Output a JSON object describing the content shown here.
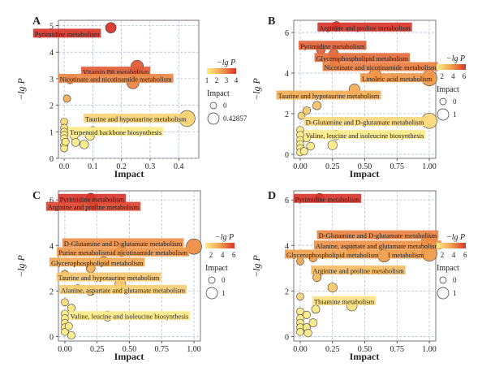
{
  "chart_data": [
    {
      "type": "scatter",
      "panel_label": "A",
      "title": "",
      "xlabel": "Impact",
      "ylabel": "−lg P",
      "xlim": [
        -0.02,
        0.47
      ],
      "ylim": [
        0,
        5.2
      ],
      "xticks": [
        "0.0",
        "0.1",
        "0.2",
        "0.3",
        "0.4"
      ],
      "xtick_values": [
        0,
        0.1,
        0.2,
        0.3,
        0.4
      ],
      "yticks": [
        "0",
        "1",
        "2",
        "3",
        "4",
        "5"
      ],
      "ytick_values": [
        0,
        1,
        2,
        3,
        4,
        5
      ],
      "color_range": [
        1,
        4
      ],
      "legend": {
        "color_title": "−lg P",
        "color_ticks": [
          "1",
          "2",
          "3",
          "4"
        ],
        "color_tick_values": [
          1,
          2,
          3,
          4
        ],
        "size_title": "Impact",
        "size_labels": [
          "0",
          "0.42857"
        ]
      },
      "points": [
        {
          "x": 0.163,
          "y": 4.92,
          "size": 0.163
        },
        {
          "x": 0.255,
          "y": 3.46,
          "size": 0.255
        },
        {
          "x": 0.24,
          "y": 2.85,
          "size": 0.24
        },
        {
          "x": 0.02,
          "y": 2.95,
          "size": 0.02
        },
        {
          "x": 0.01,
          "y": 2.25,
          "size": 0.01
        },
        {
          "x": 0.429,
          "y": 1.5,
          "size": 0.429
        },
        {
          "x": 0.1,
          "y": 1.02,
          "size": 0.1
        },
        {
          "x": 0.0,
          "y": 1.38,
          "size": 0.0
        },
        {
          "x": 0.0,
          "y": 1.15,
          "size": 0.0
        },
        {
          "x": 0.0,
          "y": 1.0,
          "size": 0.0
        },
        {
          "x": 0.0,
          "y": 0.88,
          "size": 0.0
        },
        {
          "x": 0.0,
          "y": 0.75,
          "size": 0.0
        },
        {
          "x": 0.005,
          "y": 0.62,
          "size": 0.005
        },
        {
          "x": 0.0,
          "y": 0.5,
          "size": 0.0
        },
        {
          "x": 0.0,
          "y": 0.38,
          "size": 0.0
        },
        {
          "x": 0.035,
          "y": 0.85,
          "size": 0.035
        },
        {
          "x": 0.07,
          "y": 0.52,
          "size": 0.07
        },
        {
          "x": 0.04,
          "y": 0.6,
          "size": 0.04
        },
        {
          "x": 0.09,
          "y": 0.85,
          "size": 0.09
        }
      ],
      "annotations": [
        {
          "text": "Pyrimidine metabolism",
          "x": 0.01,
          "y": 4.7,
          "y_value": 4.92
        },
        {
          "text": "Vitamin B6 metabolism",
          "x": 0.18,
          "y": 3.27,
          "y_value": 3.46
        },
        {
          "text": "Nicotinate and nicotinamide metabolism",
          "x": 0.18,
          "y": 3.0,
          "y_value": 2.85
        },
        {
          "text": "Taurine and hypotaurine metabolism",
          "x": 0.25,
          "y": 1.5,
          "y_value": 1.5
        },
        {
          "text": "Terpenoid backbone biosynthesis",
          "x": 0.18,
          "y": 1.0,
          "y_value": 1.02
        }
      ]
    },
    {
      "type": "scatter",
      "panel_label": "B",
      "title": "",
      "xlabel": "Impact",
      "ylabel": "−lg P",
      "xlim": [
        -0.05,
        1.05
      ],
      "ylim": [
        -0.2,
        6.6
      ],
      "xticks": [
        "0.00",
        "0.25",
        "0.50",
        "0.75",
        "1.00"
      ],
      "xtick_values": [
        0,
        0.25,
        0.5,
        0.75,
        1.0
      ],
      "yticks": [
        "0",
        "2",
        "4",
        "6"
      ],
      "ytick_values": [
        0,
        2,
        4,
        6
      ],
      "color_range": [
        1,
        6.3
      ],
      "legend": {
        "color_title": "−lg P",
        "color_ticks": [
          "2",
          "4",
          "6"
        ],
        "color_tick_values": [
          2,
          4,
          6
        ],
        "size_title": "Impact",
        "size_labels": [
          "0",
          "1"
        ]
      },
      "points": [
        {
          "x": 0.28,
          "y": 6.3,
          "size": 0.28
        },
        {
          "x": 0.16,
          "y": 5.15,
          "size": 0.16
        },
        {
          "x": 0.26,
          "y": 4.95,
          "size": 0.26
        },
        {
          "x": 0.27,
          "y": 4.5,
          "size": 0.27
        },
        {
          "x": 0.58,
          "y": 3.9,
          "size": 0.58
        },
        {
          "x": 1.0,
          "y": 3.75,
          "size": 1.0
        },
        {
          "x": 0.42,
          "y": 3.2,
          "size": 0.42
        },
        {
          "x": 0.13,
          "y": 2.4,
          "size": 0.13
        },
        {
          "x": 0.05,
          "y": 2.15,
          "size": 0.05
        },
        {
          "x": 0.01,
          "y": 1.9,
          "size": 0.01
        },
        {
          "x": 1.0,
          "y": 1.65,
          "size": 1.0
        },
        {
          "x": 0.28,
          "y": 0.95,
          "size": 0.28
        },
        {
          "x": 0.0,
          "y": 1.2,
          "size": 0.0
        },
        {
          "x": 0.0,
          "y": 0.95,
          "size": 0.0
        },
        {
          "x": 0.0,
          "y": 0.7,
          "size": 0.0
        },
        {
          "x": 0.0,
          "y": 0.5,
          "size": 0.0
        },
        {
          "x": 0.0,
          "y": 0.3,
          "size": 0.0
        },
        {
          "x": 0.0,
          "y": 0.1,
          "size": 0.0
        },
        {
          "x": 0.03,
          "y": 0.15,
          "size": 0.03
        },
        {
          "x": 0.08,
          "y": 0.4,
          "size": 0.08
        },
        {
          "x": 0.25,
          "y": 0.45,
          "size": 0.25
        },
        {
          "x": 0.05,
          "y": 0.8,
          "size": 0.05
        }
      ],
      "annotations": [
        {
          "text": "Arginine and proline metabolism",
          "x": 0.5,
          "y": 6.25,
          "y_value": 6.3
        },
        {
          "text": "Pyrimidine metabolism",
          "x": 0.25,
          "y": 5.35,
          "y_value": 5.15
        },
        {
          "text": "Glycerophospholipid metabolism",
          "x": 0.48,
          "y": 4.75,
          "y_value": 4.95
        },
        {
          "text": "Nicotinate and nicotinamide metabolism",
          "x": 0.62,
          "y": 4.3,
          "y_value": 4.5
        },
        {
          "text": "Linoleic acid metabolism",
          "x": 0.75,
          "y": 3.75,
          "y_value": 3.9
        },
        {
          "text": "Taurine and hypotaurine metabolism",
          "x": 0.22,
          "y": 2.9,
          "y_value": 3.2
        },
        {
          "text": "D-Glutamine and D-glutamate metabolism",
          "x": 0.5,
          "y": 1.6,
          "y_value": 1.65
        },
        {
          "text": "Valine, leucine and isoleucine biosynthesis",
          "x": 0.5,
          "y": 0.95,
          "y_value": 0.95
        }
      ]
    },
    {
      "type": "scatter",
      "panel_label": "C",
      "title": "",
      "xlabel": "Impact",
      "ylabel": "−lg P",
      "xlim": [
        -0.05,
        1.05
      ],
      "ylim": [
        -0.2,
        6.4
      ],
      "xticks": [
        "0.00",
        "0.25",
        "0.50",
        "0.75",
        "1.00"
      ],
      "xtick_values": [
        0,
        0.25,
        0.5,
        0.75,
        1.0
      ],
      "yticks": [
        "0",
        "2",
        "4",
        "6"
      ],
      "ytick_values": [
        0,
        2,
        4,
        6
      ],
      "color_range": [
        1,
        6.1
      ],
      "legend": {
        "color_title": "−lg P",
        "color_ticks": [
          "2",
          "4",
          "6"
        ],
        "color_tick_values": [
          2,
          4,
          6
        ],
        "size_title": "Impact",
        "size_labels": [
          "0",
          "1"
        ]
      },
      "points": [
        {
          "x": 0.2,
          "y": 6.1,
          "size": 0.2
        },
        {
          "x": 0.22,
          "y": 5.75,
          "size": 0.22
        },
        {
          "x": 1.0,
          "y": 3.95,
          "size": 1.0
        },
        {
          "x": 0.44,
          "y": 3.75,
          "size": 0.44
        },
        {
          "x": 0.3,
          "y": 3.3,
          "size": 0.3
        },
        {
          "x": 0.2,
          "y": 3.0,
          "size": 0.2
        },
        {
          "x": 0.43,
          "y": 2.3,
          "size": 0.43
        },
        {
          "x": 0.1,
          "y": 2.1,
          "size": 0.1
        },
        {
          "x": 0.2,
          "y": 2.0,
          "size": 0.2
        },
        {
          "x": 0.0,
          "y": 2.75,
          "size": 0.0
        },
        {
          "x": 0.0,
          "y": 1.5,
          "size": 0.0
        },
        {
          "x": 0.05,
          "y": 1.25,
          "size": 0.05
        },
        {
          "x": 0.0,
          "y": 1.0,
          "size": 0.0
        },
        {
          "x": 0.0,
          "y": 0.8,
          "size": 0.0
        },
        {
          "x": 0.0,
          "y": 0.6,
          "size": 0.0
        },
        {
          "x": 0.0,
          "y": 0.4,
          "size": 0.0
        },
        {
          "x": 0.0,
          "y": 0.2,
          "size": 0.0
        },
        {
          "x": 0.03,
          "y": 0.45,
          "size": 0.03
        },
        {
          "x": 0.05,
          "y": 0.05,
          "size": 0.05
        },
        {
          "x": 0.33,
          "y": 0.9,
          "size": 0.33
        }
      ],
      "annotations": [
        {
          "text": "Pyrimidine metabolism",
          "x": 0.21,
          "y": 6.05,
          "y_value": 6.1
        },
        {
          "text": "Arginine and proline metabolism",
          "x": 0.22,
          "y": 5.7,
          "y_value": 5.75
        },
        {
          "text": "D-Glutamine and D-glutamate metabolism",
          "x": 0.45,
          "y": 4.1,
          "y_value": 3.95
        },
        {
          "text": "Purine metabolismid nicotinamide metabolism",
          "x": 0.45,
          "y": 3.7,
          "y_value": 3.75
        },
        {
          "text": "Glycerophospholipid metabolism",
          "x": 0.25,
          "y": 3.25,
          "y_value": 3.3
        },
        {
          "text": "Taurine and hypotaurine metabolism",
          "x": 0.34,
          "y": 2.6,
          "y_value": 2.3
        },
        {
          "text": "Alanine, aspartate and glutamate metabolism",
          "x": 0.45,
          "y": 2.05,
          "y_value": 2.0
        },
        {
          "text": "Valine, leucine and isoleucine biosynthesis",
          "x": 0.5,
          "y": 0.9,
          "y_value": 0.9
        }
      ]
    },
    {
      "type": "scatter",
      "panel_label": "D",
      "title": "",
      "xlabel": "Impact",
      "ylabel": "−lg P",
      "xlim": [
        -0.05,
        1.05
      ],
      "ylim": [
        -0.2,
        6.4
      ],
      "xticks": [
        "0.00",
        "0.25",
        "0.50",
        "0.75",
        "1.00"
      ],
      "xtick_values": [
        0,
        0.25,
        0.5,
        0.75,
        1.0
      ],
      "yticks": [
        "0",
        "2",
        "4",
        "6"
      ],
      "ytick_values": [
        0,
        2,
        4,
        6
      ],
      "color_range": [
        1,
        6.1
      ],
      "legend": {
        "color_title": "−lg P",
        "color_ticks": [
          "2",
          "4",
          "6"
        ],
        "color_tick_values": [
          2,
          4,
          6
        ],
        "size_title": "Impact",
        "size_labels": [
          "0",
          "1"
        ]
      },
      "points": [
        {
          "x": 0.15,
          "y": 6.1,
          "size": 0.15
        },
        {
          "x": 1.0,
          "y": 4.2,
          "size": 1.0
        },
        {
          "x": 0.4,
          "y": 3.85,
          "size": 0.4
        },
        {
          "x": 1.0,
          "y": 3.65,
          "size": 1.0
        },
        {
          "x": 0.65,
          "y": 3.55,
          "size": 0.65
        },
        {
          "x": 0.1,
          "y": 3.45,
          "size": 0.1
        },
        {
          "x": 0.0,
          "y": 3.3,
          "size": 0.0
        },
        {
          "x": 0.13,
          "y": 2.6,
          "size": 0.13
        },
        {
          "x": 0.25,
          "y": 2.15,
          "size": 0.25
        },
        {
          "x": 0.0,
          "y": 1.75,
          "size": 0.0
        },
        {
          "x": 0.4,
          "y": 1.35,
          "size": 0.4
        },
        {
          "x": 0.12,
          "y": 1.2,
          "size": 0.12
        },
        {
          "x": 0.0,
          "y": 1.1,
          "size": 0.0
        },
        {
          "x": 0.05,
          "y": 0.95,
          "size": 0.05
        },
        {
          "x": 0.0,
          "y": 0.8,
          "size": 0.0
        },
        {
          "x": 0.0,
          "y": 0.6,
          "size": 0.0
        },
        {
          "x": 0.0,
          "y": 0.4,
          "size": 0.0
        },
        {
          "x": 0.0,
          "y": 0.2,
          "size": 0.0
        },
        {
          "x": 0.05,
          "y": 0.4,
          "size": 0.05
        },
        {
          "x": 0.1,
          "y": 0.6,
          "size": 0.1
        },
        {
          "x": 0.06,
          "y": 0.15,
          "size": 0.06
        }
      ],
      "annotations": [
        {
          "text": "Pyrimidine metabolism",
          "x": 0.21,
          "y": 6.05,
          "y_value": 6.1
        },
        {
          "text": "D-Glutamine and D-glutamate metabolism",
          "x": 0.6,
          "y": 4.45,
          "y_value": 4.2
        },
        {
          "text": "Alanine, aspartate and glutamate metabolism",
          "x": 0.6,
          "y": 4.0,
          "y_value": 3.85
        },
        {
          "text": "Glycerophospholipid metabolism",
          "x": 0.25,
          "y": 3.6,
          "y_value": 3.55
        },
        {
          "text": "l metabolism",
          "x": 0.82,
          "y": 3.6,
          "y_value": 3.65
        },
        {
          "text": "Arginine and proline metabolism",
          "x": 0.45,
          "y": 2.9,
          "y_value": 2.6
        },
        {
          "text": "Thiamine metabolism",
          "x": 0.34,
          "y": 1.55,
          "y_value": 1.35
        }
      ]
    }
  ]
}
